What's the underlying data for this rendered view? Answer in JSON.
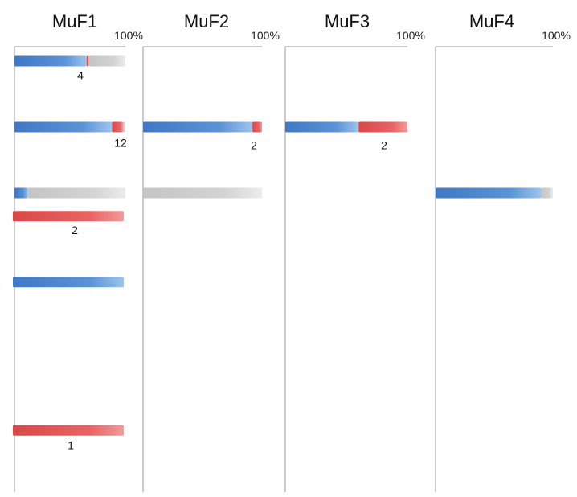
{
  "chart_data": {
    "type": "bar",
    "orientation": "horizontal-stacked-percent",
    "scale_label": "100%",
    "colors": {
      "blue": "#4a86cc",
      "red": "#e05a5a",
      "gray": "#cfcfcf",
      "axis": "#9a9a9a"
    },
    "panels": [
      {
        "title": "MuF1",
        "rows": [
          {
            "slot": 0,
            "segments": [
              {
                "color": "blue",
                "value": 0.65
              },
              {
                "color": "red",
                "value": 0.02
              },
              {
                "color": "gray",
                "value": 0.33
              }
            ],
            "count": "4"
          },
          {
            "slot": 1,
            "segments": [
              {
                "color": "blue",
                "value": 0.88
              },
              {
                "color": "red",
                "value": 0.1
              },
              {
                "color": "gray",
                "value": 0.02
              }
            ],
            "count": "12"
          },
          {
            "slot": 2,
            "segments": [
              {
                "color": "blue",
                "value": 0.12
              },
              {
                "color": "gray",
                "value": 0.88
              }
            ],
            "count": ""
          },
          {
            "slot": 2.35,
            "segments": [
              {
                "color": "red",
                "value": 1.0
              }
            ],
            "count": "2"
          },
          {
            "slot": 3.35,
            "segments": [
              {
                "color": "blue",
                "value": 1.0
              }
            ],
            "count": ""
          },
          {
            "slot": 5.6,
            "segments": [
              {
                "color": "red",
                "value": 1.0
              }
            ],
            "count": "1"
          }
        ]
      },
      {
        "title": "MuF2",
        "rows": [
          {
            "slot": 1,
            "segments": [
              {
                "color": "blue",
                "value": 0.92
              },
              {
                "color": "red",
                "value": 0.08
              }
            ],
            "count": "2"
          },
          {
            "slot": 2,
            "segments": [
              {
                "color": "gray",
                "value": 1.0
              }
            ],
            "count": ""
          }
        ]
      },
      {
        "title": "MuF3",
        "rows": [
          {
            "slot": 1,
            "segments": [
              {
                "color": "blue",
                "value": 0.6
              },
              {
                "color": "red",
                "value": 0.4
              }
            ],
            "count": "2"
          }
        ]
      },
      {
        "title": "MuF4",
        "rows": [
          {
            "slot": 2,
            "segments": [
              {
                "color": "blue",
                "value": 0.9
              },
              {
                "color": "gray",
                "value": 0.1
              }
            ],
            "count": ""
          }
        ]
      }
    ]
  }
}
